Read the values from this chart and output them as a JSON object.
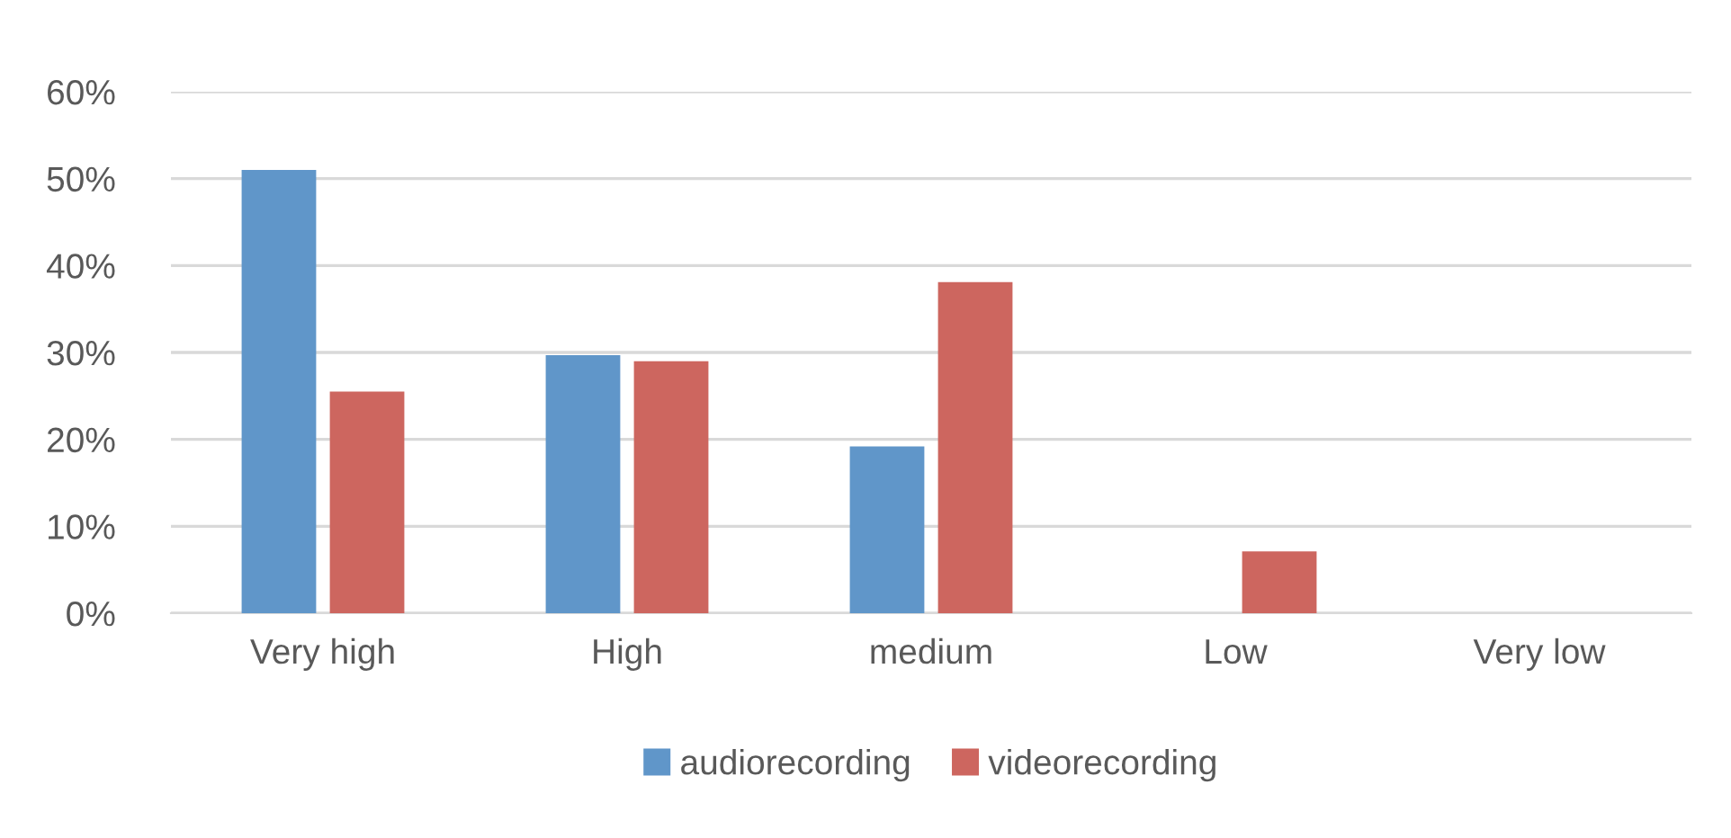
{
  "chart_data": {
    "type": "bar",
    "categories": [
      "Very high",
      "High",
      "medium",
      "Low",
      "Very low"
    ],
    "series": [
      {
        "name": "audiorecording",
        "color": "#6096c9",
        "values": [
          51,
          29.7,
          19.2,
          0,
          0
        ]
      },
      {
        "name": "videorecording",
        "color": "#cd665f",
        "values": [
          25.5,
          29,
          38.1,
          7.1,
          0
        ]
      }
    ],
    "ylim": [
      0,
      60
    ],
    "yticks": [
      {
        "value": 0,
        "label": "0%"
      },
      {
        "value": 10,
        "label": "10%"
      },
      {
        "value": 20,
        "label": "20%"
      },
      {
        "value": 30,
        "label": "30%"
      },
      {
        "value": 40,
        "label": "40%"
      },
      {
        "value": 50,
        "label": "50%"
      },
      {
        "value": 60,
        "label": "60%"
      }
    ],
    "grid": "y",
    "legend": "bottom"
  }
}
